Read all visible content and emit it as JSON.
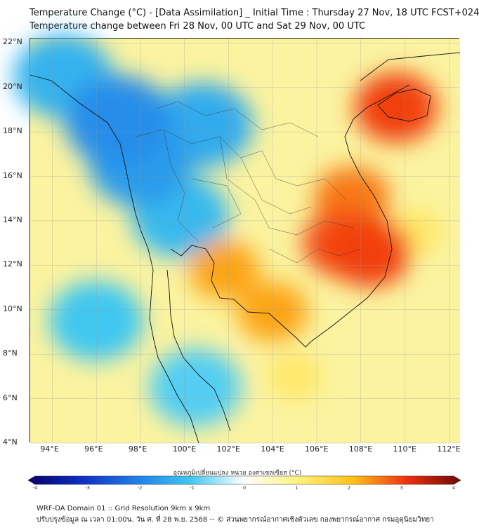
{
  "title_line1": "Temperature Change (°C) - [Data Assimilation] _ Initial Time : Thursday 27 Nov, 18 UTC FCST+024",
  "title_line2": "Temperature change between Fri 28 Nov, 00 UTC and Sat 29 Nov, 00 UTC",
  "map": {
    "lon_range": [
      93,
      112.5
    ],
    "lat_range": [
      4,
      22.2
    ],
    "lat_ticks": [
      "22°N",
      "20°N",
      "18°N",
      "16°N",
      "14°N",
      "12°N",
      "10°N",
      "8°N",
      "6°N",
      "4°N"
    ],
    "lat_values": [
      22,
      20,
      18,
      16,
      14,
      12,
      10,
      8,
      6,
      4
    ],
    "lon_ticks": [
      "94°E",
      "96°E",
      "98°E",
      "100°E",
      "102°E",
      "104°E",
      "106°E",
      "108°E",
      "110°E",
      "112°E"
    ],
    "lon_values": [
      94,
      96,
      98,
      100,
      102,
      104,
      106,
      108,
      110,
      112
    ],
    "warm_areas": [
      {
        "lon": 109.6,
        "lat": 19.1,
        "value": 2.9
      },
      {
        "lon": 107.2,
        "lat": 13.0,
        "value": 2.8
      },
      {
        "lon": 108.4,
        "lat": 12.6,
        "value": 2.9
      },
      {
        "lon": 107.6,
        "lat": 15.0,
        "value": 2.5
      },
      {
        "lon": 101.8,
        "lat": 11.8,
        "value": 2.2
      },
      {
        "lon": 104.0,
        "lat": 9.9,
        "value": 2.2
      },
      {
        "lon": 110.5,
        "lat": 13.5,
        "value": 1.2
      },
      {
        "lon": 105.0,
        "lat": 7.0,
        "value": 1.2
      }
    ],
    "cool_areas": [
      {
        "lon": 97.0,
        "lat": 18.5,
        "value": -1.8
      },
      {
        "lon": 98.0,
        "lat": 16.6,
        "value": -1.6
      },
      {
        "lon": 100.8,
        "lat": 18.3,
        "value": -1.4
      },
      {
        "lon": 94.5,
        "lat": 20.5,
        "value": -1.3
      },
      {
        "lon": 99.8,
        "lat": 14.2,
        "value": -1.2
      },
      {
        "lon": 96.0,
        "lat": 9.5,
        "value": -1.0
      },
      {
        "lon": 100.5,
        "lat": 6.5,
        "value": -0.9
      }
    ]
  },
  "colorbar": {
    "label": "อุณหภูมิเปลี่ยนแปลง หน่วย องศาเซลเซียส (°C)",
    "ticks": [
      "-4",
      "-3",
      "-2",
      "-1",
      "0",
      "1",
      "2",
      "3",
      "4"
    ],
    "tick_values": [
      -4,
      -3,
      -2,
      -1,
      0,
      1,
      2,
      3,
      4
    ],
    "range": [
      -4,
      4
    ],
    "colors": [
      "#08006b",
      "#0d2fc4",
      "#1f7fe8",
      "#3fc8f0",
      "#ffffff",
      "#fff27a",
      "#ffc21a",
      "#f03010",
      "#6b0a00"
    ]
  },
  "footer_line1": "WRF-DA Domain 01 :: Grid Resolution 9km x 9km",
  "footer_line2": "ปรับปรุงข้อมูล ณ เวลา 01:00น. วัน ศ. ที่ 28 พ.ย. 2568 -- © ส่วนพยากรณ์อากาศเชิงตัวเลข กองพยากรณ์อากาศ กรมอุตุนิยมวิทยา"
}
